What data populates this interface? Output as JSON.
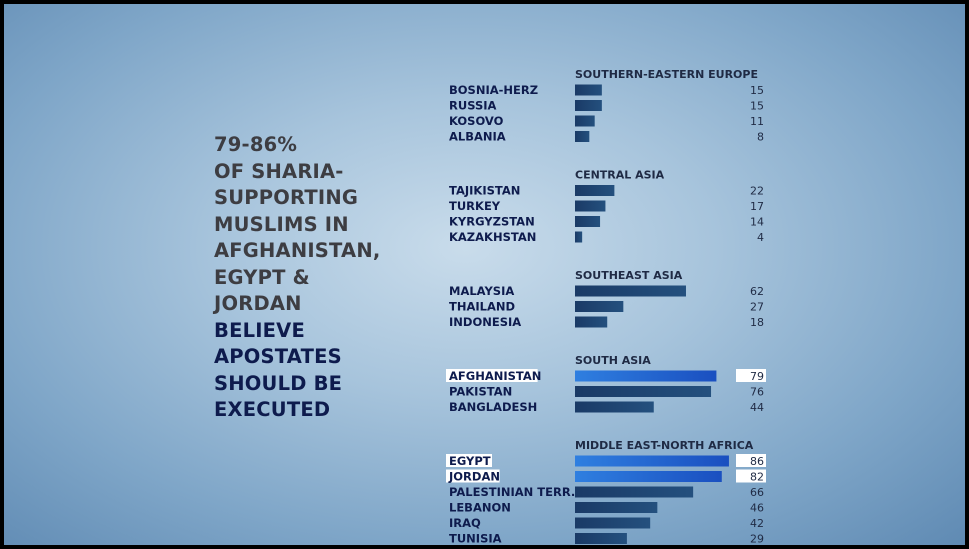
{
  "headline": {
    "lines_dark": [
      "79-86%",
      "OF SHARIA-",
      "SUPPORTING",
      "MUSLIMS IN",
      "AFGHANISTAN,",
      "EGYPT &",
      "JORDAN"
    ],
    "lines_emph": [
      "BELIEVE",
      "APOSTATES",
      "SHOULD BE",
      "EXECUTED"
    ]
  },
  "colors": {
    "bar_default": "#1b3f6b",
    "bar_highlight": "#1f5fd0",
    "text_navy": "#0e1b4d",
    "headline_dark": "#3d3d42"
  },
  "chart_data": {
    "type": "bar",
    "orientation": "horizontal",
    "xlim": [
      0,
      100
    ],
    "groups": [
      {
        "region": "SOUTHERN-EASTERN EUROPE",
        "items": [
          {
            "label": "BOSNIA-HERZ",
            "value": 15
          },
          {
            "label": "RUSSIA",
            "value": 15
          },
          {
            "label": "KOSOVO",
            "value": 11
          },
          {
            "label": "ALBANIA",
            "value": 8
          }
        ]
      },
      {
        "region": "CENTRAL ASIA",
        "items": [
          {
            "label": "TAJIKISTAN",
            "value": 22
          },
          {
            "label": "TURKEY",
            "value": 17
          },
          {
            "label": "KYRGYZSTAN",
            "value": 14
          },
          {
            "label": "KAZAKHSTAN",
            "value": 4
          }
        ]
      },
      {
        "region": "SOUTHEAST ASIA",
        "items": [
          {
            "label": "MALAYSIA",
            "value": 62
          },
          {
            "label": "THAILAND",
            "value": 27
          },
          {
            "label": "INDONESIA",
            "value": 18
          }
        ]
      },
      {
        "region": "SOUTH ASIA",
        "items": [
          {
            "label": "AFGHANISTAN",
            "value": 79,
            "highlight": true
          },
          {
            "label": "PAKISTAN",
            "value": 76
          },
          {
            "label": "BANGLADESH",
            "value": 44
          }
        ]
      },
      {
        "region": "MIDDLE EAST-NORTH AFRICA",
        "items": [
          {
            "label": "EGYPT",
            "value": 86,
            "highlight": true
          },
          {
            "label": "JORDAN",
            "value": 82,
            "highlight": true
          },
          {
            "label": "PALESTINIAN TERR.",
            "value": 66
          },
          {
            "label": "LEBANON",
            "value": 46
          },
          {
            "label": "IRAQ",
            "value": 42
          },
          {
            "label": "TUNISIA",
            "value": 29
          }
        ]
      }
    ]
  }
}
